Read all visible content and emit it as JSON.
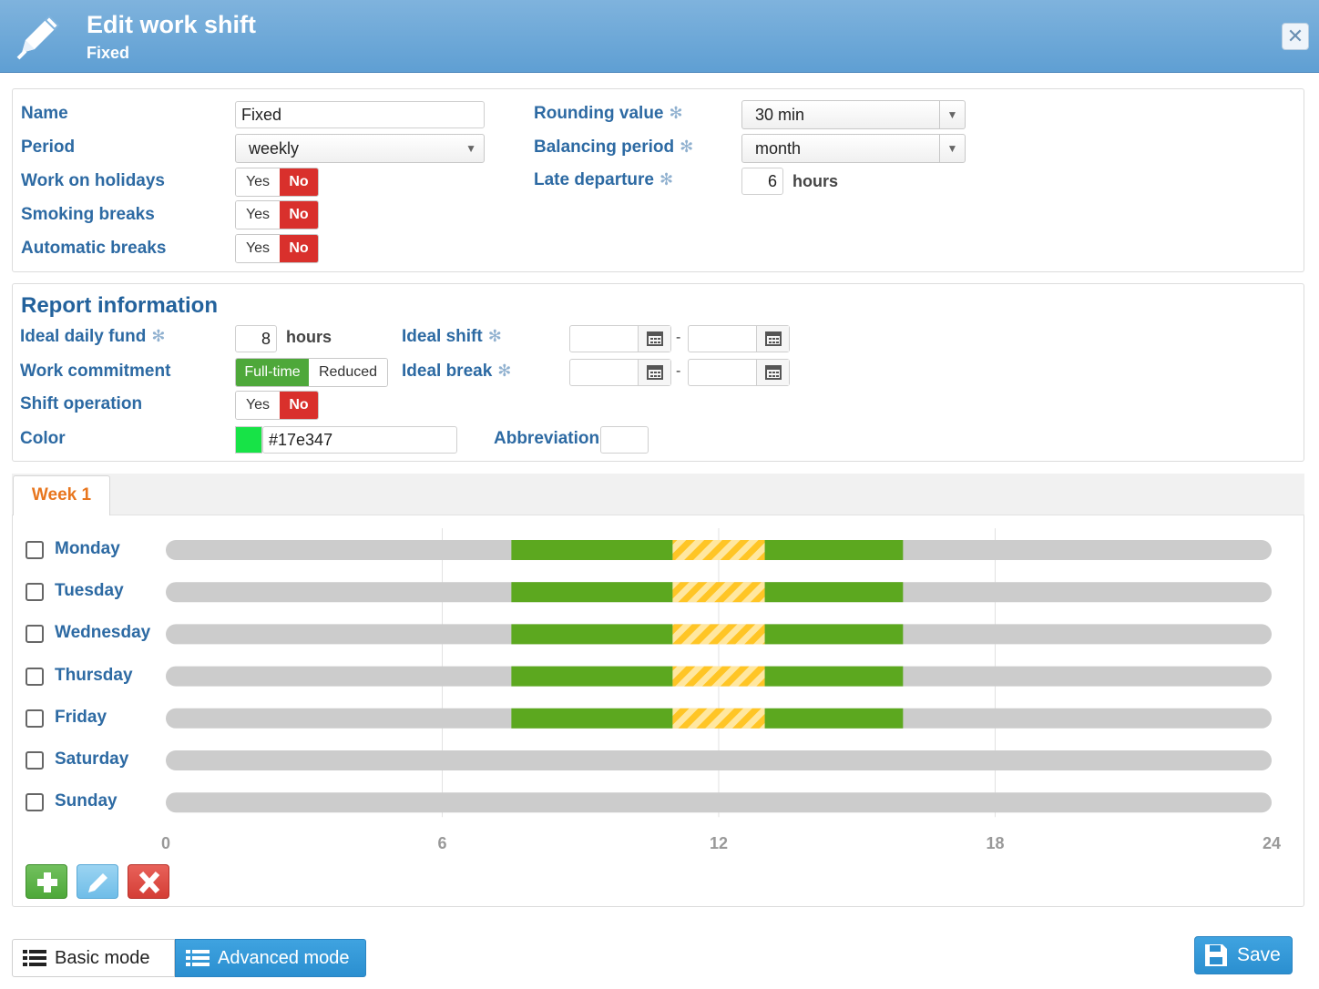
{
  "header": {
    "title": "Edit work shift",
    "subtitle": "Fixed",
    "close_icon": "close-icon"
  },
  "settings": {
    "name_label": "Name",
    "name_value": "Fixed",
    "period_label": "Period",
    "period_value": "weekly",
    "holidays_label": "Work on holidays",
    "smoking_label": "Smoking breaks",
    "auto_breaks_label": "Automatic breaks",
    "yes_label": "Yes",
    "no_label": "No",
    "rounding_label": "Rounding value",
    "rounding_value": "30 min",
    "balancing_label": "Balancing period",
    "balancing_value": "month",
    "late_label": "Late departure",
    "late_value": "6",
    "hours_unit": "hours",
    "asterisk": "✻"
  },
  "report": {
    "title": "Report information",
    "fund_label": "Ideal daily fund",
    "fund_value": "8",
    "hours_unit": "hours",
    "commitment_label": "Work commitment",
    "fulltime_label": "Full-time",
    "reduced_label": "Reduced",
    "shift_op_label": "Shift operation",
    "yes_label": "Yes",
    "no_label": "No",
    "color_label": "Color",
    "color_value": "#17e347",
    "ideal_shift_label": "Ideal shift",
    "ideal_break_label": "Ideal break",
    "abbreviation_label": "Abbreviation",
    "dash": "-"
  },
  "schedule": {
    "tab_label": "Week 1",
    "axis_ticks": [
      "0",
      "6",
      "12",
      "18",
      "24"
    ],
    "axis_max": 24,
    "work_color": "#5ca81f",
    "break_color": "#ffc525",
    "track_color": "#cccccc",
    "days": [
      {
        "name": "Monday",
        "segments": [
          {
            "start": 7.5,
            "end": 11.0,
            "type": "work"
          },
          {
            "start": 11.0,
            "end": 13.0,
            "type": "break"
          },
          {
            "start": 13.0,
            "end": 16.0,
            "type": "work"
          }
        ]
      },
      {
        "name": "Tuesday",
        "segments": [
          {
            "start": 7.5,
            "end": 11.0,
            "type": "work"
          },
          {
            "start": 11.0,
            "end": 13.0,
            "type": "break"
          },
          {
            "start": 13.0,
            "end": 16.0,
            "type": "work"
          }
        ]
      },
      {
        "name": "Wednesday",
        "segments": [
          {
            "start": 7.5,
            "end": 11.0,
            "type": "work"
          },
          {
            "start": 11.0,
            "end": 13.0,
            "type": "break"
          },
          {
            "start": 13.0,
            "end": 16.0,
            "type": "work"
          }
        ]
      },
      {
        "name": "Thursday",
        "segments": [
          {
            "start": 7.5,
            "end": 11.0,
            "type": "work"
          },
          {
            "start": 11.0,
            "end": 13.0,
            "type": "break"
          },
          {
            "start": 13.0,
            "end": 16.0,
            "type": "work"
          }
        ]
      },
      {
        "name": "Friday",
        "segments": [
          {
            "start": 7.5,
            "end": 11.0,
            "type": "work"
          },
          {
            "start": 11.0,
            "end": 13.0,
            "type": "break"
          },
          {
            "start": 13.0,
            "end": 16.0,
            "type": "work"
          }
        ]
      },
      {
        "name": "Saturday",
        "segments": []
      },
      {
        "name": "Sunday",
        "segments": []
      }
    ]
  },
  "footer": {
    "basic_label": "Basic mode",
    "advanced_label": "Advanced mode",
    "save_label": "Save"
  }
}
